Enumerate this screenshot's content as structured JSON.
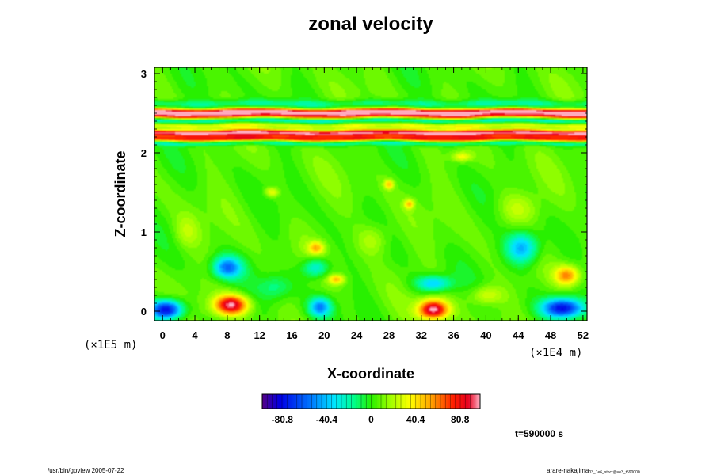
{
  "chart_data": {
    "type": "heatmap",
    "title": "zonal velocity",
    "xlabel": "X-coordinate",
    "ylabel": "Z-coordinate",
    "x_unit": "(×1E4 m)",
    "y_unit": "(×1E5 m)",
    "x_ticks": [
      "0",
      "4",
      "8",
      "12",
      "16",
      "20",
      "24",
      "28",
      "32",
      "36",
      "40",
      "44",
      "48",
      "52"
    ],
    "y_ticks": [
      "0",
      "1",
      "2",
      "3"
    ],
    "xlim": [
      -1,
      52.5
    ],
    "ylim": [
      -0.12,
      3.08
    ],
    "colorbar": {
      "range": [
        -99,
        99
      ],
      "tick_values": [
        -80.8,
        -40.4,
        0,
        40.4,
        80.8
      ],
      "tick_labels": [
        "-80.8",
        "-40.4",
        "0",
        "40.4",
        "80.8"
      ]
    },
    "bands": [
      {
        "z": 2.52,
        "width": 0.035,
        "value": 95
      },
      {
        "z": 2.47,
        "width": 0.035,
        "value": 70
      },
      {
        "z": 2.41,
        "width": 0.03,
        "value": -30
      },
      {
        "z": 2.34,
        "width": 0.03,
        "value": 25
      },
      {
        "z": 2.25,
        "width": 0.04,
        "value": 95
      },
      {
        "z": 2.18,
        "width": 0.035,
        "value": 70
      },
      {
        "z": 2.12,
        "width": 0.03,
        "value": -25
      },
      {
        "z": 2.62,
        "width": 0.05,
        "value": -20
      }
    ],
    "features": [
      {
        "x": 0.5,
        "z": 0.02,
        "rx": 2.0,
        "rz": 0.12,
        "value": -90
      },
      {
        "x": 8.5,
        "z": 0.08,
        "rx": 2.0,
        "rz": 0.12,
        "value": 90
      },
      {
        "x": 33.5,
        "z": 0.02,
        "rx": 1.8,
        "rz": 0.12,
        "value": 95
      },
      {
        "x": 49.5,
        "z": 0.04,
        "rx": 2.5,
        "rz": 0.12,
        "value": -85
      },
      {
        "x": 8.0,
        "z": 0.55,
        "rx": 1.8,
        "rz": 0.14,
        "value": -60
      },
      {
        "x": 19.0,
        "z": 0.55,
        "rx": 1.6,
        "rz": 0.12,
        "value": -40
      },
      {
        "x": 33.5,
        "z": 0.35,
        "rx": 2.2,
        "rz": 0.1,
        "value": -45
      },
      {
        "x": 44.5,
        "z": 0.8,
        "rx": 2.0,
        "rz": 0.2,
        "value": -55
      },
      {
        "x": 50.0,
        "z": 0.45,
        "rx": 1.5,
        "rz": 0.12,
        "value": 55
      },
      {
        "x": 19.5,
        "z": 0.05,
        "rx": 1.4,
        "rz": 0.12,
        "value": -55
      },
      {
        "x": 19.0,
        "z": 0.8,
        "rx": 1.0,
        "rz": 0.08,
        "value": 40
      },
      {
        "x": 21.5,
        "z": 0.4,
        "rx": 1.0,
        "rz": 0.06,
        "value": 40
      },
      {
        "x": 28.0,
        "z": 1.6,
        "rx": 0.6,
        "rz": 0.06,
        "value": 40
      },
      {
        "x": 30.5,
        "z": 1.35,
        "rx": 0.6,
        "rz": 0.06,
        "value": 40
      },
      {
        "x": 13.5,
        "z": 1.5,
        "rx": 0.8,
        "rz": 0.06,
        "value": 30
      },
      {
        "x": 37.0,
        "z": 1.95,
        "rx": 1.2,
        "rz": 0.06,
        "value": 30
      },
      {
        "x": 26.0,
        "z": 0.9,
        "rx": 2.0,
        "rz": 0.2,
        "value": 18
      },
      {
        "x": 44.0,
        "z": 1.3,
        "rx": 2.5,
        "rz": 0.2,
        "value": 18
      },
      {
        "x": 3.0,
        "z": 1.0,
        "rx": 1.5,
        "rz": 0.2,
        "value": 15
      },
      {
        "x": 14.0,
        "z": 0.3,
        "rx": 2.0,
        "rz": 0.15,
        "value": -20
      },
      {
        "x": 40.0,
        "z": 0.2,
        "rx": 2.0,
        "rz": 0.12,
        "value": 25
      }
    ]
  },
  "annotations": {
    "time": "t=590000 s",
    "footer_left": "/usr/bin/gpview 2005-07-22",
    "footer_right": "arare-nakajima",
    "footer_right_sub": "03_1e6_stncr@ve3_t590000"
  }
}
